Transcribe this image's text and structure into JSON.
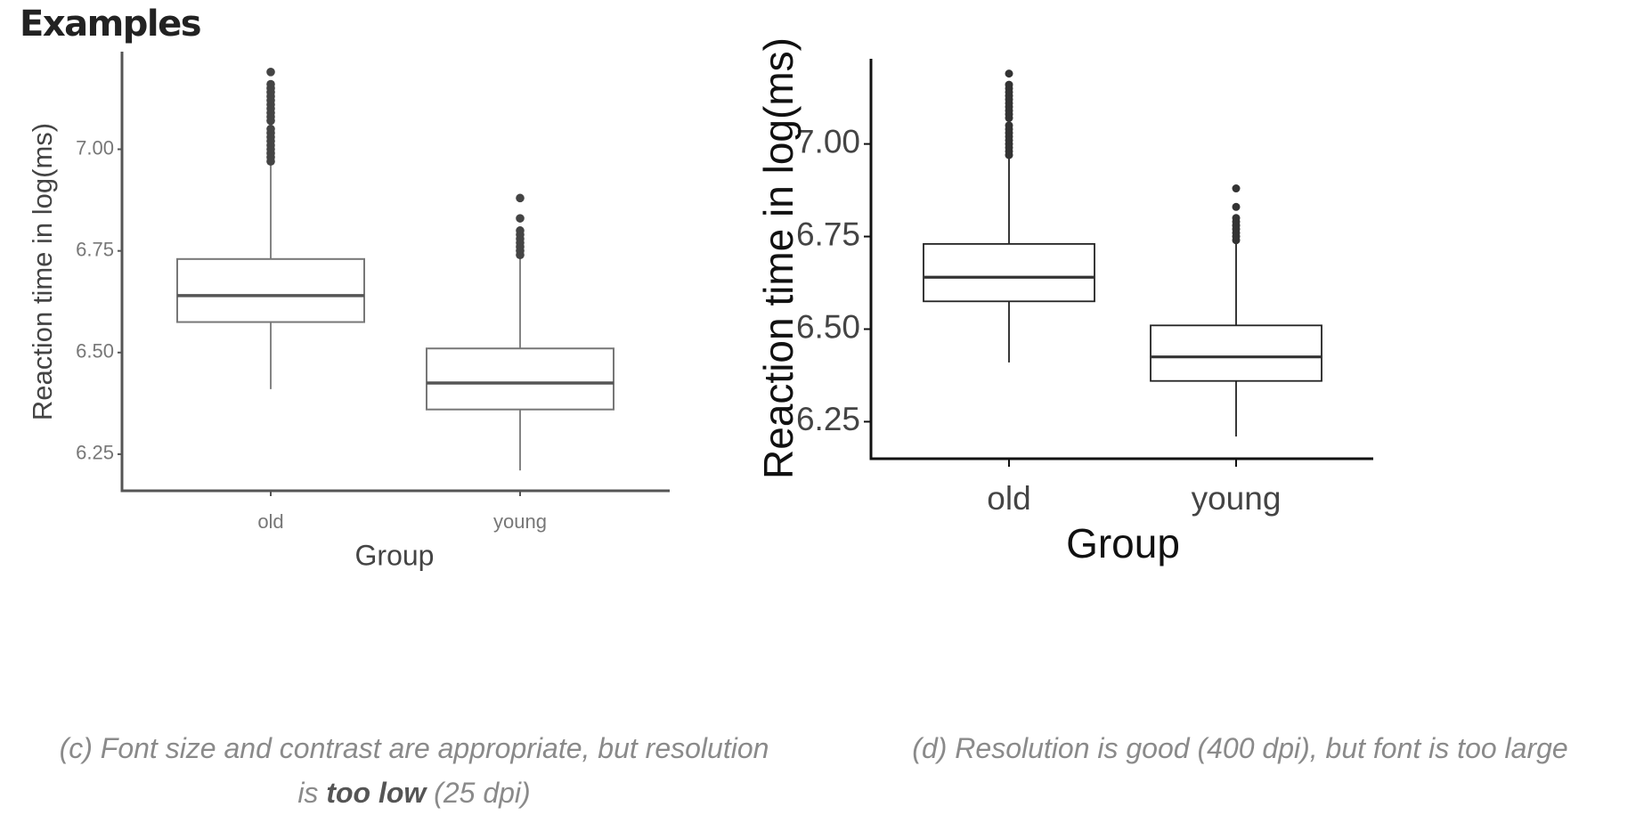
{
  "heading": "Examples",
  "captions": {
    "c": {
      "pre": "(c) Font size and contrast are appropriate, but resolution",
      "pre2": "is ",
      "bold": "too low",
      "post": " (25 dpi)"
    },
    "d": {
      "text": "(d) Resolution is good (400 dpi), but font is too large"
    }
  },
  "chart_data": [
    {
      "type": "box",
      "panel": "c",
      "xlabel": "Group",
      "ylabel": "Reaction time in log(ms)",
      "categories": [
        "old",
        "young"
      ],
      "yticks": [
        6.25,
        6.5,
        6.75,
        7.0
      ],
      "ytick_labels": [
        "6.25",
        "6.50",
        "6.75",
        "7.00"
      ],
      "ylim": [
        6.16,
        7.24
      ],
      "series": [
        {
          "category": "old",
          "whisker_low": 6.41,
          "q1": 6.575,
          "median": 6.64,
          "q3": 6.73,
          "whisker_high": 6.97,
          "outliers": [
            6.97,
            6.98,
            6.99,
            7.0,
            7.01,
            7.02,
            7.03,
            7.04,
            7.05,
            7.07,
            7.08,
            7.09,
            7.1,
            7.11,
            7.12,
            7.13,
            7.14,
            7.15,
            7.16,
            7.19
          ]
        },
        {
          "category": "young",
          "whisker_low": 6.21,
          "q1": 6.36,
          "median": 6.425,
          "q3": 6.51,
          "whisker_high": 6.74,
          "outliers": [
            6.74,
            6.75,
            6.76,
            6.77,
            6.78,
            6.79,
            6.8,
            6.83,
            6.88
          ]
        }
      ],
      "colors": {
        "axis": "#555555",
        "box": "#777777",
        "median": "#555555",
        "text": "#777777",
        "label": "#444444",
        "point": "#444444"
      }
    },
    {
      "type": "box",
      "panel": "d",
      "xlabel": "Group",
      "ylabel": "Reaction time in log(ms)",
      "categories": [
        "old",
        "young"
      ],
      "yticks": [
        6.25,
        6.5,
        6.75,
        7.0
      ],
      "ytick_labels": [
        "6.25",
        "6.50",
        "6.75",
        "7.00"
      ],
      "ylim": [
        6.15,
        7.23
      ],
      "series": [
        {
          "category": "old",
          "whisker_low": 6.41,
          "q1": 6.575,
          "median": 6.64,
          "q3": 6.73,
          "whisker_high": 6.97,
          "outliers": [
            6.97,
            6.98,
            6.99,
            7.0,
            7.01,
            7.02,
            7.03,
            7.04,
            7.05,
            7.07,
            7.08,
            7.09,
            7.1,
            7.11,
            7.12,
            7.13,
            7.14,
            7.15,
            7.16,
            7.19
          ]
        },
        {
          "category": "young",
          "whisker_low": 6.21,
          "q1": 6.36,
          "median": 6.425,
          "q3": 6.51,
          "whisker_high": 6.74,
          "outliers": [
            6.74,
            6.75,
            6.76,
            6.77,
            6.78,
            6.79,
            6.8,
            6.83,
            6.88
          ]
        }
      ],
      "colors": {
        "axis": "#111111",
        "box": "#222222",
        "median": "#333333",
        "text": "#444444",
        "label": "#111111",
        "point": "#333333"
      }
    }
  ]
}
